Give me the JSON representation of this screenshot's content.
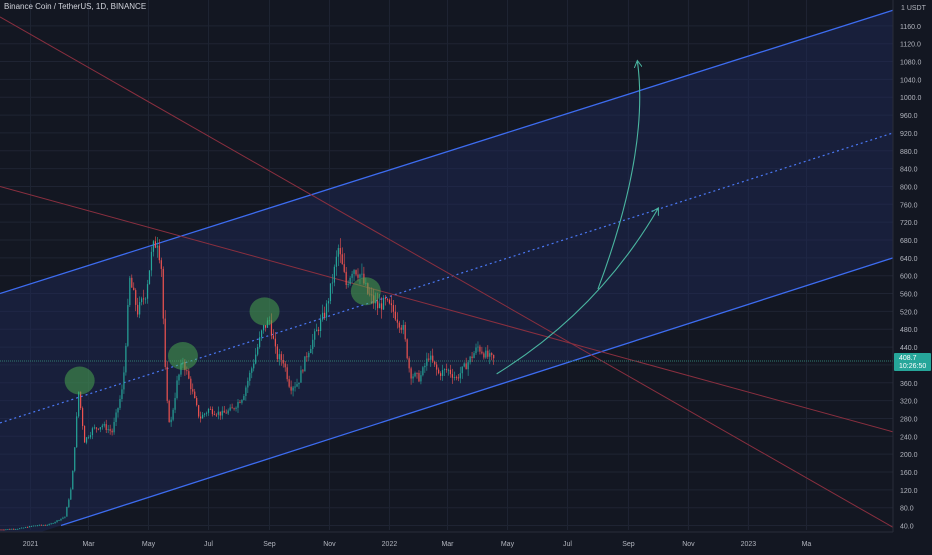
{
  "header": {
    "symbol": "Binance Coin / TetherUS",
    "interval": "1D",
    "exchange": "BINANCE",
    "separator": ", "
  },
  "colors": {
    "background": "#131722",
    "grid": "#1f2433",
    "axis_text": "#b2b5be",
    "channel_line": "#3d6cf0",
    "channel_fill": "#1e2b5c",
    "midline": "#4a78f5",
    "resistance": "#8a2f3f",
    "candle_up": "#26a69a",
    "candle_down": "#ef5350",
    "highlight": "#4caf50",
    "arrow": "#4ab5a0",
    "price_tag": "#26a69a",
    "price_line": "#2f7a6f"
  },
  "chart_data": {
    "type": "candlestick",
    "title": "",
    "xlabel": "",
    "ylabel": "",
    "currency": "USDT",
    "price_scale_unit_label": "USDT",
    "price_scale_marker": "1",
    "x_range": [
      "2020-12-01",
      "2023-05-28"
    ],
    "ylim": [
      30,
      1200
    ],
    "y_ticks": [
      40,
      80,
      120,
      160,
      200,
      240,
      280,
      320,
      360,
      400,
      440,
      480,
      520,
      560,
      600,
      640,
      680,
      720,
      760,
      800,
      840,
      880,
      920,
      960,
      1000,
      1040,
      1080,
      1120,
      1160
    ],
    "x_ticks": [
      {
        "date": "2021-01-01",
        "label": "2021"
      },
      {
        "date": "2021-03-01",
        "label": "Mar"
      },
      {
        "date": "2021-05-01",
        "label": "May"
      },
      {
        "date": "2021-07-01",
        "label": "Jul"
      },
      {
        "date": "2021-09-01",
        "label": "Sep"
      },
      {
        "date": "2021-11-01",
        "label": "Nov"
      },
      {
        "date": "2022-01-01",
        "label": "2022"
      },
      {
        "date": "2022-03-01",
        "label": "Mar"
      },
      {
        "date": "2022-05-01",
        "label": "May"
      },
      {
        "date": "2022-07-01",
        "label": "Jul"
      },
      {
        "date": "2022-09-01",
        "label": "Sep"
      },
      {
        "date": "2022-11-01",
        "label": "Nov"
      },
      {
        "date": "2023-01-01",
        "label": "2023"
      },
      {
        "date": "2023-03-01",
        "label": "Ma"
      }
    ],
    "price_path": [
      [
        "2020-12-01",
        31
      ],
      [
        "2020-12-20",
        33
      ],
      [
        "2021-01-05",
        40
      ],
      [
        "2021-01-20",
        42
      ],
      [
        "2021-02-05",
        60
      ],
      [
        "2021-02-12",
        130
      ],
      [
        "2021-02-19",
        340
      ],
      [
        "2021-02-25",
        230
      ],
      [
        "2021-03-05",
        255
      ],
      [
        "2021-03-15",
        265
      ],
      [
        "2021-03-25",
        250
      ],
      [
        "2021-04-05",
        350
      ],
      [
        "2021-04-12",
        590
      ],
      [
        "2021-04-20",
        520
      ],
      [
        "2021-04-28",
        560
      ],
      [
        "2021-05-05",
        660
      ],
      [
        "2021-05-10",
        680
      ],
      [
        "2021-05-14",
        620
      ],
      [
        "2021-05-19",
        330
      ],
      [
        "2021-05-23",
        260
      ],
      [
        "2021-05-30",
        360
      ],
      [
        "2021-06-05",
        410
      ],
      [
        "2021-06-12",
        360
      ],
      [
        "2021-06-22",
        280
      ],
      [
        "2021-07-01",
        300
      ],
      [
        "2021-07-15",
        290
      ],
      [
        "2021-07-25",
        300
      ],
      [
        "2021-08-05",
        330
      ],
      [
        "2021-08-15",
        400
      ],
      [
        "2021-08-25",
        480
      ],
      [
        "2021-09-01",
        500
      ],
      [
        "2021-09-08",
        420
      ],
      [
        "2021-09-15",
        410
      ],
      [
        "2021-09-22",
        350
      ],
      [
        "2021-09-30",
        360
      ],
      [
        "2021-10-10",
        430
      ],
      [
        "2021-10-20",
        480
      ],
      [
        "2021-10-28",
        520
      ],
      [
        "2021-11-05",
        600
      ],
      [
        "2021-11-10",
        660
      ],
      [
        "2021-11-18",
        580
      ],
      [
        "2021-11-25",
        620
      ],
      [
        "2021-12-03",
        600
      ],
      [
        "2021-12-10",
        560
      ],
      [
        "2021-12-20",
        530
      ],
      [
        "2021-12-28",
        540
      ],
      [
        "2022-01-05",
        520
      ],
      [
        "2022-01-15",
        480
      ],
      [
        "2022-01-22",
        380
      ],
      [
        "2022-02-01",
        370
      ],
      [
        "2022-02-10",
        420
      ],
      [
        "2022-02-20",
        380
      ],
      [
        "2022-03-01",
        390
      ],
      [
        "2022-03-10",
        370
      ],
      [
        "2022-03-20",
        400
      ],
      [
        "2022-04-01",
        440
      ],
      [
        "2022-04-10",
        420
      ],
      [
        "2022-04-18",
        410
      ]
    ],
    "candles": {
      "start": "2020-12-01",
      "end": "2022-04-18",
      "step_days": 2,
      "wick_fraction": 0.04,
      "body_fraction": 0.025
    },
    "last_price": {
      "value": 408.7,
      "date": "2022-04-18",
      "label": "408.7",
      "countdown": "10:26:50"
    },
    "channel": {
      "lower": [
        [
          "2021-02-01",
          40
        ],
        [
          "2023-05-28",
          640
        ]
      ],
      "upper": [
        [
          "2020-12-01",
          560
        ],
        [
          "2023-05-28",
          1195
        ]
      ],
      "mid": [
        [
          "2020-12-01",
          270
        ],
        [
          "2023-05-28",
          920
        ]
      ]
    },
    "resistance_lines": [
      [
        [
          "2020-12-01",
          1180
        ],
        [
          "2023-05-28",
          36
        ]
      ],
      [
        [
          "2020-12-01",
          800
        ],
        [
          "2023-05-28",
          250
        ]
      ]
    ],
    "touch_points": [
      {
        "date": "2021-02-20",
        "price": 365
      },
      {
        "date": "2021-06-05",
        "price": 420
      },
      {
        "date": "2021-08-27",
        "price": 520
      },
      {
        "date": "2021-12-08",
        "price": 565
      }
    ],
    "projection": {
      "curve": [
        [
          "2022-04-20",
          380
        ],
        [
          "2022-08-01",
          520
        ],
        [
          "2022-10-01",
          750
        ]
      ],
      "arc": [
        [
          "2022-08-01",
          570
        ],
        [
          "2022-08-31",
          880
        ],
        [
          "2022-08-31",
          1080
        ]
      ]
    }
  }
}
